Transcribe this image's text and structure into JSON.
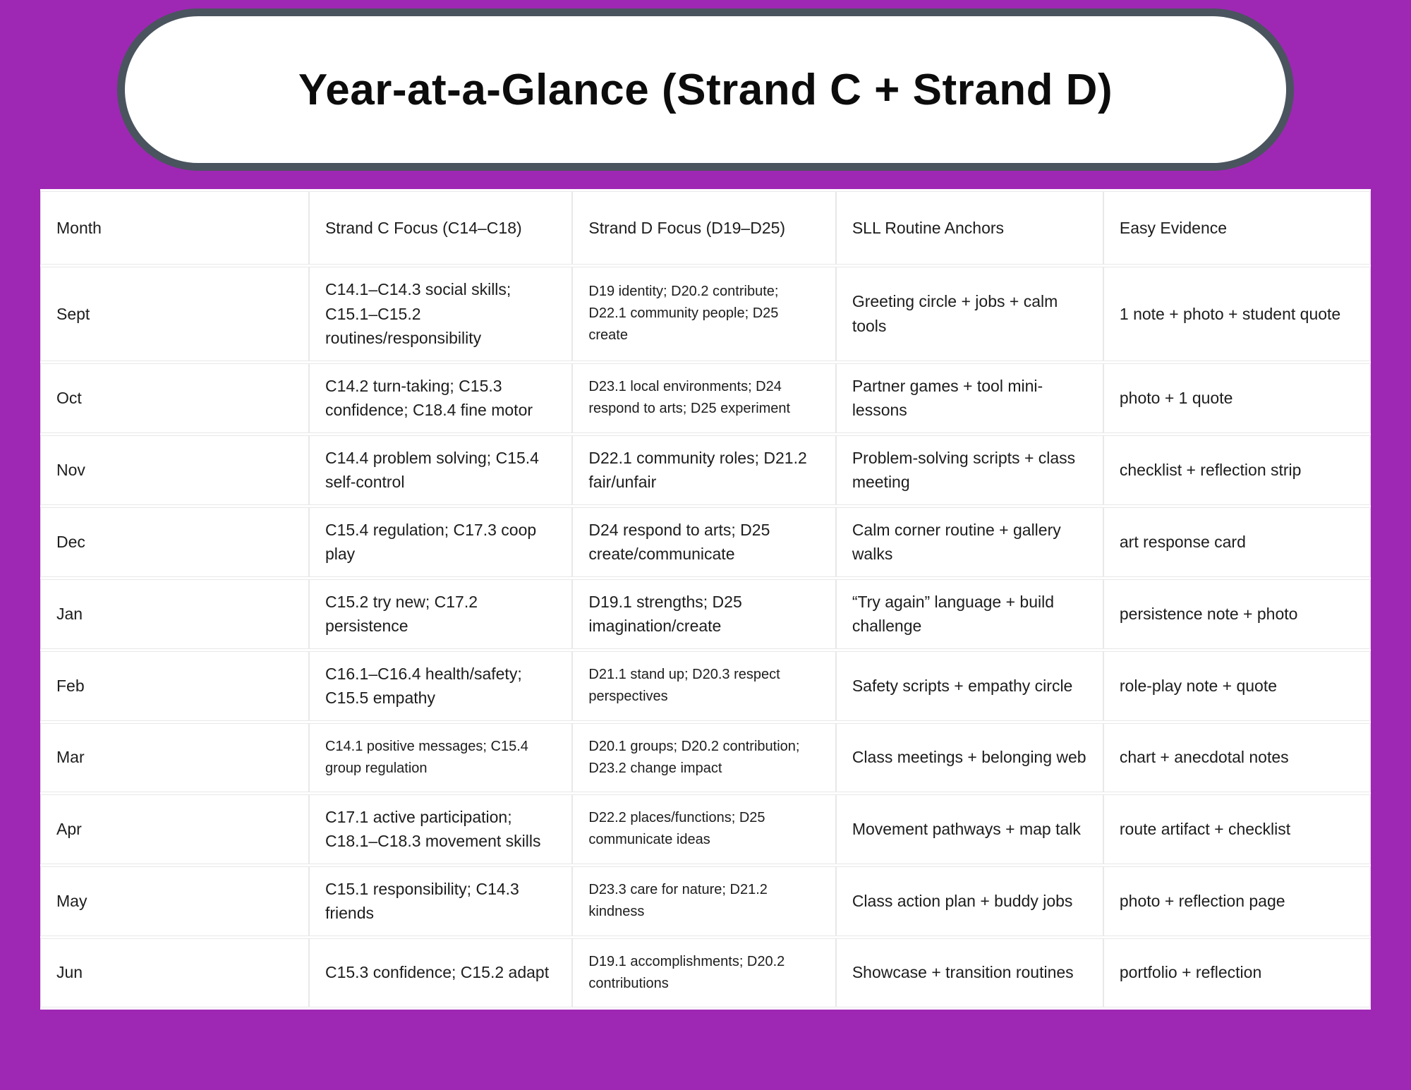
{
  "page": {
    "background_color": "#9e28b4",
    "banner_border_color": "#4a545e"
  },
  "title": {
    "text": "Year-at-a-Glance (Strand C + Strand D)"
  },
  "table": {
    "columns": [
      "Month",
      "Strand C Focus (C14–C18)",
      "Strand D Focus (D19–D25)",
      "SLL Routine Anchors",
      "Easy Evidence"
    ],
    "rows": [
      [
        "Sept",
        "C14.1–C14.3 social skills; C15.1–C15.2 routines/responsibility",
        "D19 identity; D20.2 contribute; D22.1 community people; D25 create",
        "Greeting circle + jobs + calm tools",
        "1 note + photo + student quote"
      ],
      [
        "Oct",
        "C14.2 turn-taking; C15.3 confidence; C18.4 fine motor",
        "D23.1 local environments; D24 respond to arts; D25 experiment",
        "Partner games + tool mini-lessons",
        "photo + 1 quote"
      ],
      [
        "Nov",
        "C14.4 problem solving; C15.4 self-control",
        "D22.1 community roles; D21.2 fair/unfair",
        "Problem-solving scripts + class meeting",
        "checklist + reflection strip"
      ],
      [
        "Dec",
        "C15.4 regulation; C17.3 coop play",
        "D24 respond to arts; D25 create/communicate",
        "Calm corner routine + gallery walks",
        "art response card"
      ],
      [
        "Jan",
        "C15.2 try new; C17.2 persistence",
        "D19.1 strengths; D25 imagination/create",
        "“Try again” language + build challenge",
        "persistence note + photo"
      ],
      [
        "Feb",
        "C16.1–C16.4 health/safety; C15.5 empathy",
        "D21.1 stand up; D20.3 respect perspectives",
        "Safety scripts + empathy circle",
        "role-play note + quote"
      ],
      [
        "Mar",
        "C14.1 positive messages; C15.4 group regulation",
        "D20.1 groups; D20.2 contribution; D23.2 change impact",
        "Class meetings + belonging web",
        "chart + anecdotal notes"
      ],
      [
        "Apr",
        "C17.1 active participation; C18.1–C18.3 movement skills",
        "D22.2 places/functions; D25 communicate ideas",
        "Movement pathways + map talk",
        "route artifact + checklist"
      ],
      [
        "May",
        "C15.1 responsibility; C14.3 friends",
        "D23.3 care for nature; D21.2 kindness",
        "Class action plan + buddy jobs",
        "photo + reflection page"
      ],
      [
        "Jun",
        "C15.3 confidence; C15.2 adapt",
        "D19.1 accomplishments; D20.2 contributions",
        "Showcase + transition routines",
        "portfolio + reflection"
      ]
    ]
  }
}
